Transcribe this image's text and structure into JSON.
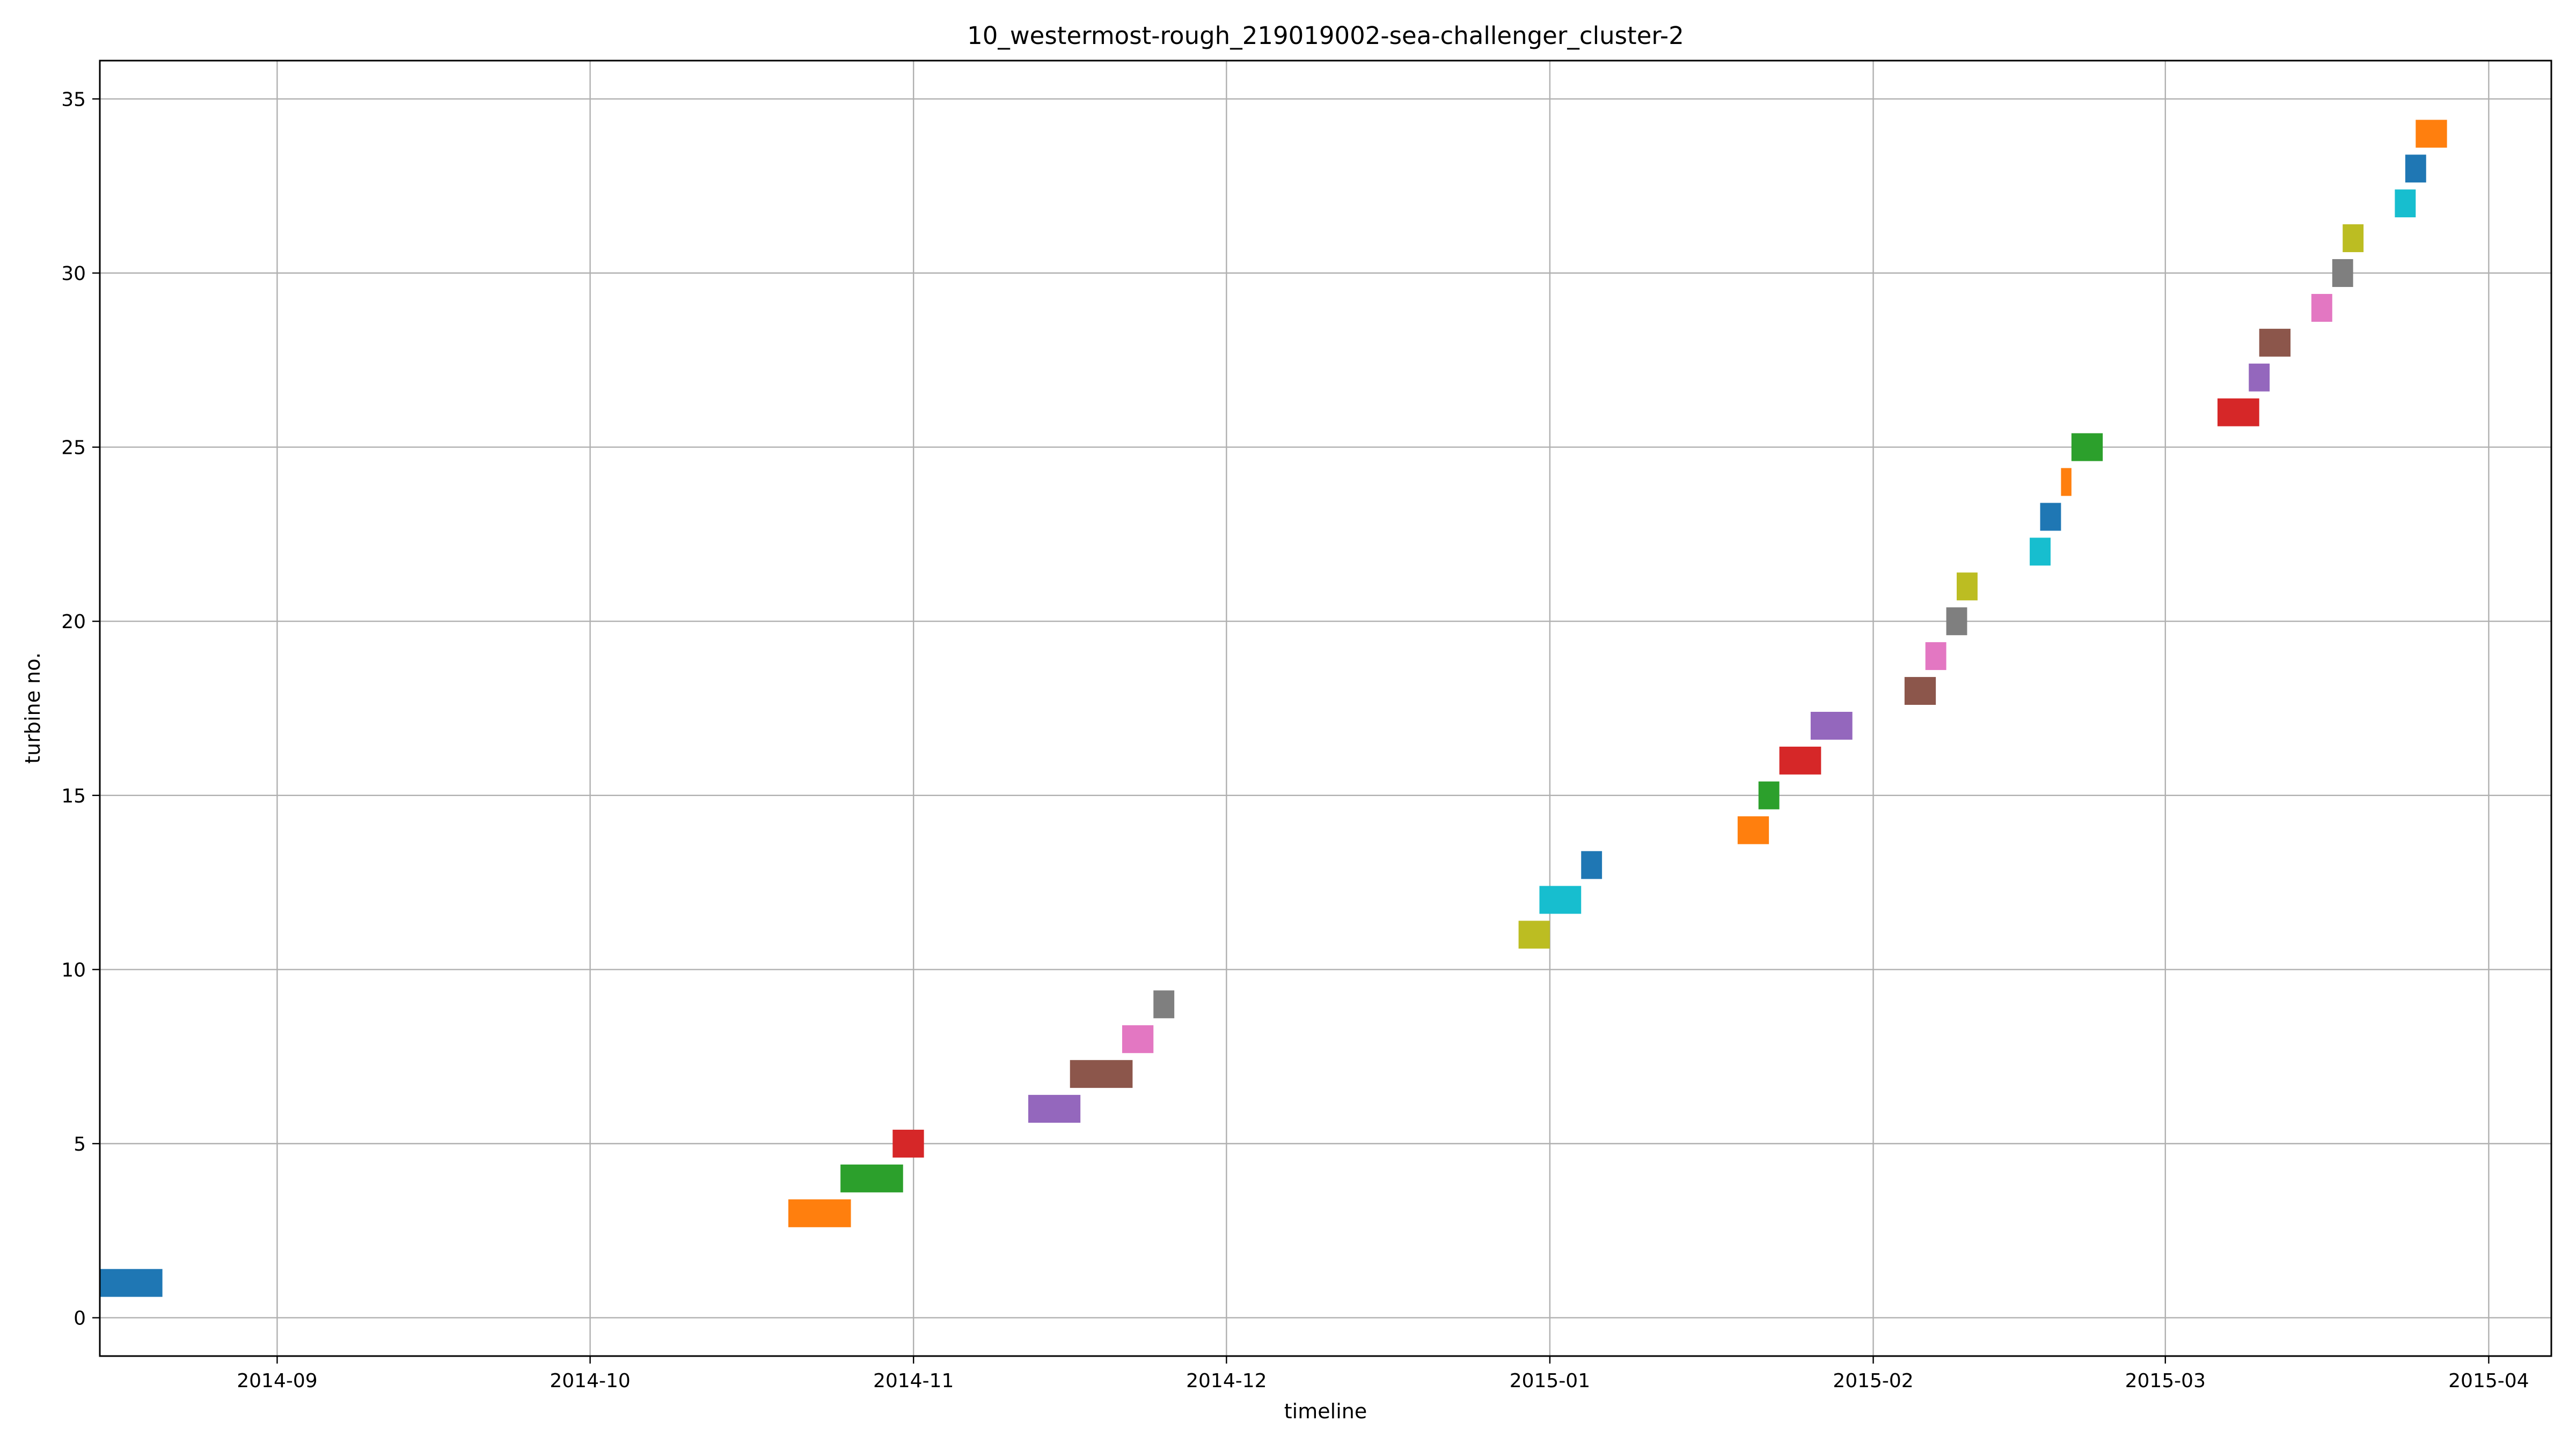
{
  "chart_data": {
    "type": "bar",
    "orientation": "horizontal-timeline",
    "title": "10_westermost-rough_219019002-sea-challenger_cluster-2",
    "xlabel": "timeline",
    "ylabel": "turbine no.",
    "xlim": [
      "2014-08-15",
      "2015-04-07"
    ],
    "ylim": [
      -1.1,
      36.1
    ],
    "x_ticks": [
      "2014-09",
      "2014-10",
      "2014-11",
      "2014-12",
      "2015-01",
      "2015-02",
      "2015-03",
      "2015-04"
    ],
    "y_ticks": [
      0,
      5,
      10,
      15,
      20,
      25,
      30,
      35
    ],
    "grid": true,
    "bar_height": 0.8,
    "colors": [
      "#1f77b4",
      "#ff7f0e",
      "#2ca02c",
      "#d62728",
      "#9467bd",
      "#8c564b",
      "#e377c2",
      "#7f7f7f",
      "#bcbd22",
      "#17becf"
    ],
    "bars": [
      {
        "turbine": 1,
        "start": "2014-08-15",
        "end": "2014-08-20",
        "color": "#1f77b4"
      },
      {
        "turbine": 3,
        "start": "2014-10-20",
        "end": "2014-10-25",
        "color": "#ff7f0e"
      },
      {
        "turbine": 4,
        "start": "2014-10-25",
        "end": "2014-10-30",
        "color": "#2ca02c"
      },
      {
        "turbine": 5,
        "start": "2014-10-30",
        "end": "2014-11-01",
        "color": "#d62728"
      },
      {
        "turbine": 6,
        "start": "2014-11-12",
        "end": "2014-11-16",
        "color": "#9467bd"
      },
      {
        "turbine": 7,
        "start": "2014-11-16",
        "end": "2014-11-21",
        "color": "#8c564b"
      },
      {
        "turbine": 8,
        "start": "2014-11-21",
        "end": "2014-11-23",
        "color": "#e377c2"
      },
      {
        "turbine": 9,
        "start": "2014-11-24",
        "end": "2014-11-25",
        "color": "#7f7f7f"
      },
      {
        "turbine": 11,
        "start": "2014-12-29",
        "end": "2014-12-31",
        "color": "#bcbd22"
      },
      {
        "turbine": 12,
        "start": "2014-12-31",
        "end": "2015-01-03",
        "color": "#17becf"
      },
      {
        "turbine": 13,
        "start": "2015-01-04",
        "end": "2015-01-05",
        "color": "#1f77b4"
      },
      {
        "turbine": 14,
        "start": "2015-01-19",
        "end": "2015-01-21",
        "color": "#ff7f0e"
      },
      {
        "turbine": 15,
        "start": "2015-01-21",
        "end": "2015-01-22",
        "color": "#2ca02c"
      },
      {
        "turbine": 16,
        "start": "2015-01-23",
        "end": "2015-01-26",
        "color": "#d62728"
      },
      {
        "turbine": 17,
        "start": "2015-01-26",
        "end": "2015-01-29",
        "color": "#9467bd"
      },
      {
        "turbine": 18,
        "start": "2015-02-04",
        "end": "2015-02-06",
        "color": "#8c564b"
      },
      {
        "turbine": 19,
        "start": "2015-02-06",
        "end": "2015-02-07",
        "color": "#e377c2"
      },
      {
        "turbine": 20,
        "start": "2015-02-08",
        "end": "2015-02-09",
        "color": "#7f7f7f"
      },
      {
        "turbine": 21,
        "start": "2015-02-09",
        "end": "2015-02-10",
        "color": "#bcbd22"
      },
      {
        "turbine": 22,
        "start": "2015-02-16",
        "end": "2015-02-17",
        "color": "#17becf"
      },
      {
        "turbine": 23,
        "start": "2015-02-17",
        "end": "2015-02-18",
        "color": "#1f77b4"
      },
      {
        "turbine": 24,
        "start": "2015-02-19",
        "end": "2015-02-19",
        "color": "#ff7f0e"
      },
      {
        "turbine": 25,
        "start": "2015-02-20",
        "end": "2015-02-22",
        "color": "#2ca02c"
      },
      {
        "turbine": 26,
        "start": "2015-03-06",
        "end": "2015-03-09",
        "color": "#d62728"
      },
      {
        "turbine": 27,
        "start": "2015-03-09",
        "end": "2015-03-10",
        "color": "#9467bd"
      },
      {
        "turbine": 28,
        "start": "2015-03-10",
        "end": "2015-03-12",
        "color": "#8c564b"
      },
      {
        "turbine": 29,
        "start": "2015-03-15",
        "end": "2015-03-16",
        "color": "#e377c2"
      },
      {
        "turbine": 30,
        "start": "2015-03-17",
        "end": "2015-03-18",
        "color": "#7f7f7f"
      },
      {
        "turbine": 31,
        "start": "2015-03-18",
        "end": "2015-03-19",
        "color": "#bcbd22"
      },
      {
        "turbine": 32,
        "start": "2015-03-23",
        "end": "2015-03-24",
        "color": "#17becf"
      },
      {
        "turbine": 33,
        "start": "2015-03-24",
        "end": "2015-03-25",
        "color": "#1f77b4"
      },
      {
        "turbine": 34,
        "start": "2015-03-25",
        "end": "2015-03-27",
        "color": "#ff7f0e"
      }
    ]
  }
}
